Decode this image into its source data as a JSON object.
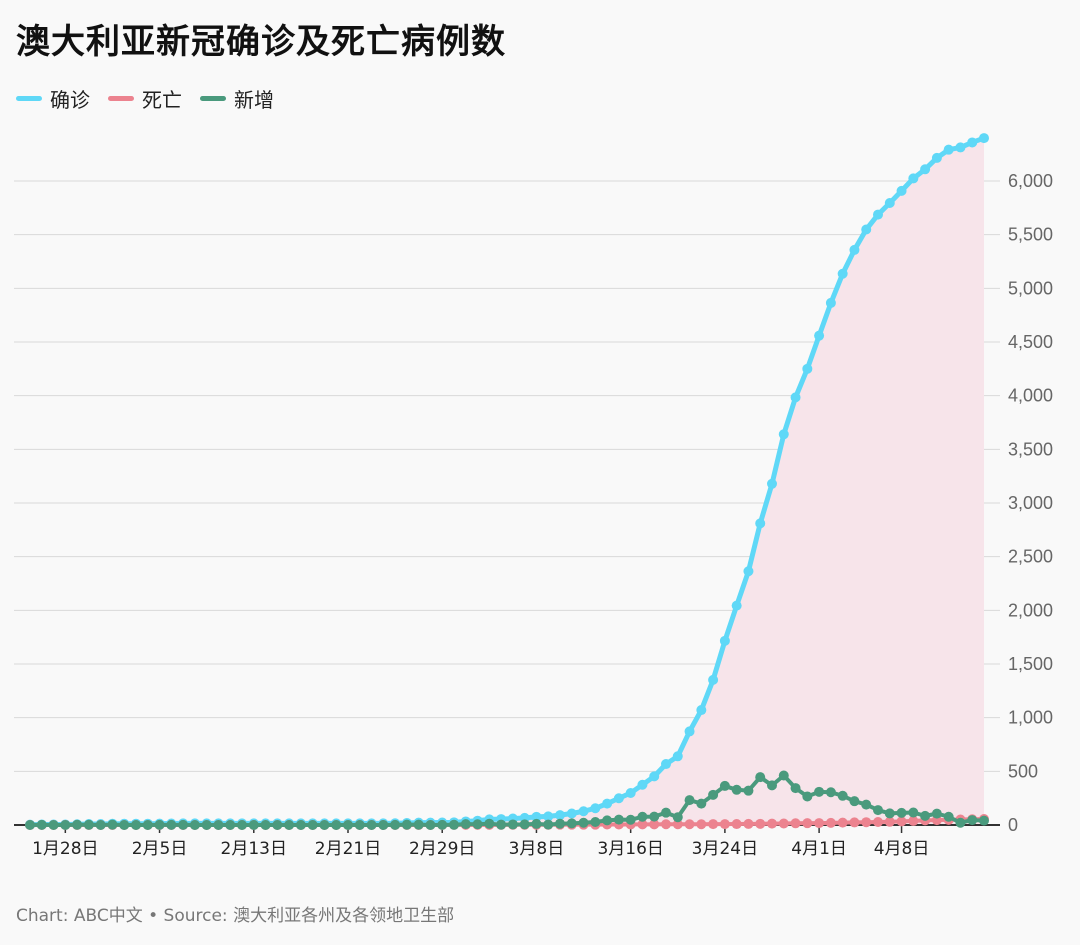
{
  "chart_data": {
    "type": "line",
    "title": "澳大利亚新冠确诊及死亡病例数",
    "source": "Chart: ABC中文 • Source: 澳大利亚各州及各领地卫生部",
    "x_start": "1月25日",
    "x_tick_labels": [
      "1月28日",
      "2月5日",
      "2月13日",
      "2月21日",
      "2月29日",
      "3月8日",
      "3月16日",
      "3月24日",
      "4月1日",
      "4月8日"
    ],
    "x_tick_index": [
      3,
      11,
      19,
      27,
      35,
      43,
      51,
      59,
      67,
      74
    ],
    "y_ticks": [
      0,
      500,
      1000,
      1500,
      2000,
      2500,
      3000,
      3500,
      4000,
      4500,
      5000,
      5500,
      6000
    ],
    "y_tick_labels": [
      "0",
      "500",
      "1,000",
      "1,500",
      "2,000",
      "2,500",
      "3,000",
      "3,500",
      "4,000",
      "4,500",
      "5,000",
      "5,500",
      "6,000"
    ],
    "ylim": [
      0,
      6600
    ],
    "grid": true,
    "legend_position": "top-left",
    "series": [
      {
        "name": "确诊",
        "color": "#5fd8f7",
        "area_color": "#f7e4ea",
        "values": [
          4,
          5,
          5,
          5,
          7,
          9,
          9,
          12,
          12,
          12,
          12,
          13,
          14,
          15,
          15,
          15,
          15,
          15,
          15,
          15,
          15,
          15,
          15,
          15,
          15,
          15,
          15,
          15,
          15,
          15,
          15,
          16,
          19,
          22,
          22,
          23,
          25,
          33,
          40,
          52,
          55,
          60,
          66,
          76,
          80,
          92,
          107,
          128,
          156,
          199,
          249,
          298,
          375,
          453,
          568,
          640,
          872,
          1071,
          1352,
          1716,
          2044,
          2364,
          2810,
          3179,
          3640,
          3984,
          4250,
          4559,
          4864,
          5136,
          5358,
          5548,
          5687,
          5795,
          5908,
          6024,
          6109,
          6215,
          6292,
          6313,
          6359,
          6400
        ]
      },
      {
        "name": "死亡",
        "color": "#ec838f",
        "values": [
          0,
          0,
          0,
          0,
          0,
          0,
          0,
          0,
          0,
          0,
          0,
          0,
          0,
          0,
          0,
          0,
          0,
          0,
          0,
          0,
          0,
          0,
          0,
          0,
          0,
          0,
          0,
          0,
          0,
          0,
          0,
          0,
          0,
          0,
          0,
          0,
          1,
          1,
          1,
          1,
          1,
          2,
          2,
          2,
          2,
          3,
          3,
          3,
          3,
          5,
          5,
          5,
          6,
          6,
          7,
          7,
          7,
          7,
          8,
          8,
          9,
          10,
          11,
          13,
          14,
          16,
          17,
          18,
          20,
          22,
          24,
          26,
          28,
          30,
          34,
          38,
          43,
          46,
          48,
          51,
          53,
          56
        ]
      },
      {
        "name": "新增",
        "color": "#4a9a7d",
        "values": [
          0,
          1,
          0,
          0,
          2,
          2,
          0,
          3,
          0,
          0,
          0,
          1,
          1,
          1,
          0,
          0,
          0,
          0,
          0,
          0,
          0,
          0,
          0,
          0,
          0,
          0,
          0,
          0,
          0,
          0,
          0,
          1,
          3,
          3,
          0,
          1,
          2,
          8,
          7,
          12,
          3,
          5,
          6,
          10,
          4,
          12,
          15,
          21,
          28,
          43,
          50,
          49,
          77,
          78,
          115,
          72,
          232,
          199,
          281,
          364,
          328,
          320,
          446,
          369,
          461,
          344,
          266,
          309,
          305,
          272,
          222,
          190,
          139,
          108,
          113,
          116,
          85,
          106,
          77,
          21,
          46,
          41
        ]
      }
    ]
  }
}
